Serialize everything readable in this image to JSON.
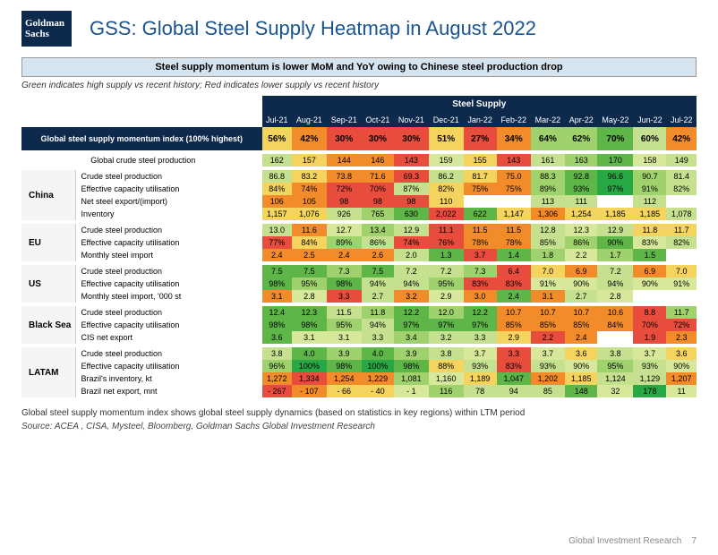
{
  "logo": {
    "line1": "Goldman",
    "line2": "Sachs"
  },
  "title": "GSS: Global Steel Supply Heatmap in August 2022",
  "subtitle": "Steel supply momentum is lower MoM and YoY owing to Chinese steel production drop",
  "legend": "Green indicates high supply vs recent history; Red indicates lower supply vs recent history",
  "table_header_top": "Steel Supply",
  "months": [
    "Jul-21",
    "Aug-21",
    "Sep-21",
    "Oct-21",
    "Nov-21",
    "Dec-21",
    "Jan-22",
    "Feb-22",
    "Mar-22",
    "Apr-22",
    "May-22",
    "Jun-22",
    "Jul-22"
  ],
  "momentum_label": "Global steel supply momentum index (100% highest)",
  "momentum": {
    "values": [
      "56%",
      "42%",
      "30%",
      "30%",
      "30%",
      "51%",
      "27%",
      "34%",
      "64%",
      "62%",
      "70%",
      "60%",
      "42%"
    ],
    "colors": [
      "#f4d35e",
      "#f28c2b",
      "#e84c3d",
      "#e84c3d",
      "#e84c3d",
      "#f4d35e",
      "#e84c3d",
      "#f28c2b",
      "#9fd16c",
      "#9fd16c",
      "#5eb548",
      "#c5e08f",
      "#f28c2b"
    ]
  },
  "global_crude": {
    "label": "Global crude steel production",
    "values": [
      "162",
      "157",
      "144",
      "146",
      "143",
      "159",
      "155",
      "143",
      "161",
      "163",
      "170",
      "158",
      "149"
    ],
    "colors": [
      "#c5e08f",
      "#f4d35e",
      "#f28c2b",
      "#f28c2b",
      "#e84c3d",
      "#d8e89a",
      "#f4d35e",
      "#e84c3d",
      "#c5e08f",
      "#9fd16c",
      "#5eb548",
      "#d8e89a",
      "#c5e08f"
    ]
  },
  "regions": [
    {
      "name": "China",
      "metrics": [
        {
          "label": "Crude steel production",
          "values": [
            "86.8",
            "83.2",
            "73.8",
            "71.6",
            "69.3",
            "86.2",
            "81.7",
            "75.0",
            "88.3",
            "92.8",
            "96.6",
            "90.7",
            "81.4"
          ],
          "colors": [
            "#c5e08f",
            "#f4d35e",
            "#f28c2b",
            "#f28c2b",
            "#e84c3d",
            "#c5e08f",
            "#f4d35e",
            "#f28c2b",
            "#9fd16c",
            "#5eb548",
            "#28a745",
            "#9fd16c",
            "#c5e08f"
          ]
        },
        {
          "label": "Effective capacity utilisation",
          "values": [
            "84%",
            "74%",
            "72%",
            "70%",
            "87%",
            "82%",
            "75%",
            "75%",
            "89%",
            "93%",
            "97%",
            "91%",
            "82%"
          ],
          "colors": [
            "#f4d35e",
            "#f28c2b",
            "#e84c3d",
            "#e84c3d",
            "#c5e08f",
            "#f4d35e",
            "#f28c2b",
            "#f28c2b",
            "#9fd16c",
            "#5eb548",
            "#28a745",
            "#9fd16c",
            "#c5e08f"
          ]
        },
        {
          "label": "Net steel export/(import)",
          "values": [
            "106",
            "105",
            "98",
            "98",
            "98",
            "110",
            "",
            "",
            "113",
            "111",
            "",
            "112",
            ""
          ],
          "colors": [
            "#f28c2b",
            "#f28c2b",
            "#e84c3d",
            "#e84c3d",
            "#e84c3d",
            "#f4d35e",
            "#ffffff",
            "#ffffff",
            "#c5e08f",
            "#c5e08f",
            "#ffffff",
            "#c5e08f",
            "#ffffff"
          ]
        },
        {
          "label": "Inventory",
          "values": [
            "1,157",
            "1,076",
            "926",
            "765",
            "630",
            "2,022",
            "622",
            "1,147",
            "1,306",
            "1,254",
            "1,185",
            "1,185",
            "1,078"
          ],
          "colors": [
            "#f4d35e",
            "#f4d35e",
            "#c5e08f",
            "#9fd16c",
            "#5eb548",
            "#e84c3d",
            "#5eb548",
            "#f4d35e",
            "#f28c2b",
            "#f4d35e",
            "#f4d35e",
            "#f4d35e",
            "#c5e08f"
          ]
        }
      ]
    },
    {
      "name": "EU",
      "metrics": [
        {
          "label": "Crude steel production",
          "values": [
            "13.0",
            "11.6",
            "12.7",
            "13.4",
            "12.9",
            "11.1",
            "11.5",
            "11.5",
            "12.8",
            "12.3",
            "12.9",
            "11.8",
            "11.7"
          ],
          "colors": [
            "#c5e08f",
            "#f28c2b",
            "#d8e89a",
            "#9fd16c",
            "#c5e08f",
            "#e84c3d",
            "#f28c2b",
            "#f28c2b",
            "#c5e08f",
            "#d8e89a",
            "#c5e08f",
            "#f4d35e",
            "#f4d35e"
          ]
        },
        {
          "label": "Effective capacity utilisation",
          "values": [
            "77%",
            "84%",
            "89%",
            "86%",
            "74%",
            "76%",
            "78%",
            "78%",
            "85%",
            "86%",
            "90%",
            "83%",
            "82%"
          ],
          "colors": [
            "#e84c3d",
            "#f4d35e",
            "#9fd16c",
            "#c5e08f",
            "#e84c3d",
            "#e84c3d",
            "#f28c2b",
            "#f28c2b",
            "#c5e08f",
            "#9fd16c",
            "#5eb548",
            "#d8e89a",
            "#c5e08f"
          ]
        },
        {
          "label": "Monthly steel import",
          "values": [
            "2.4",
            "2.5",
            "2.4",
            "2.6",
            "2.0",
            "1.3",
            "3.7",
            "1.4",
            "1.8",
            "2.2",
            "1.7",
            "1.5",
            ""
          ],
          "colors": [
            "#f28c2b",
            "#f28c2b",
            "#f28c2b",
            "#f28c2b",
            "#c5e08f",
            "#5eb548",
            "#e84c3d",
            "#5eb548",
            "#9fd16c",
            "#d8e89a",
            "#9fd16c",
            "#5eb548",
            "#ffffff"
          ]
        }
      ]
    },
    {
      "name": "US",
      "metrics": [
        {
          "label": "Crude steel production",
          "values": [
            "7.5",
            "7.5",
            "7.3",
            "7.5",
            "7.2",
            "7.2",
            "7.3",
            "6.4",
            "7.0",
            "6.9",
            "7.2",
            "6.9",
            "7.0"
          ],
          "colors": [
            "#5eb548",
            "#5eb548",
            "#9fd16c",
            "#5eb548",
            "#c5e08f",
            "#c5e08f",
            "#9fd16c",
            "#e84c3d",
            "#f4d35e",
            "#f28c2b",
            "#c5e08f",
            "#f28c2b",
            "#f4d35e"
          ]
        },
        {
          "label": "Effective capacity utilisation",
          "values": [
            "98%",
            "95%",
            "98%",
            "94%",
            "94%",
            "95%",
            "83%",
            "83%",
            "91%",
            "90%",
            "94%",
            "90%",
            "91%"
          ],
          "colors": [
            "#5eb548",
            "#9fd16c",
            "#5eb548",
            "#c5e08f",
            "#c5e08f",
            "#9fd16c",
            "#e84c3d",
            "#e84c3d",
            "#d8e89a",
            "#d8e89a",
            "#c5e08f",
            "#d8e89a",
            "#d8e89a"
          ]
        },
        {
          "label": "Monthly steel import, '000 st",
          "values": [
            "3.1",
            "2.8",
            "3.3",
            "2.7",
            "3.2",
            "2.9",
            "3.0",
            "2.4",
            "3.1",
            "2.7",
            "2.8",
            "",
            ""
          ],
          "colors": [
            "#f28c2b",
            "#d8e89a",
            "#e84c3d",
            "#c5e08f",
            "#f28c2b",
            "#d8e89a",
            "#f28c2b",
            "#5eb548",
            "#f28c2b",
            "#c5e08f",
            "#d8e89a",
            "#ffffff",
            "#ffffff"
          ]
        }
      ]
    },
    {
      "name": "Black Sea",
      "metrics": [
        {
          "label": "Crude steel production",
          "values": [
            "12.4",
            "12.3",
            "11.5",
            "11.8",
            "12.2",
            "12.0",
            "12.2",
            "10.7",
            "10.7",
            "10.7",
            "10.6",
            "8.8",
            "11.7"
          ],
          "colors": [
            "#5eb548",
            "#5eb548",
            "#c5e08f",
            "#9fd16c",
            "#5eb548",
            "#9fd16c",
            "#5eb548",
            "#f28c2b",
            "#f28c2b",
            "#f28c2b",
            "#f28c2b",
            "#e84c3d",
            "#9fd16c"
          ]
        },
        {
          "label": "Effective capacity utilisation",
          "values": [
            "98%",
            "98%",
            "95%",
            "94%",
            "97%",
            "97%",
            "97%",
            "85%",
            "85%",
            "85%",
            "84%",
            "70%",
            "72%"
          ],
          "colors": [
            "#5eb548",
            "#5eb548",
            "#9fd16c",
            "#c5e08f",
            "#5eb548",
            "#5eb548",
            "#5eb548",
            "#f28c2b",
            "#f28c2b",
            "#f28c2b",
            "#f28c2b",
            "#e84c3d",
            "#e84c3d"
          ]
        },
        {
          "label": "CIS net export",
          "values": [
            "3.6",
            "3.1",
            "3.1",
            "3.3",
            "3.4",
            "3.2",
            "3.3",
            "2.9",
            "2.2",
            "2.4",
            "",
            "1.9",
            "2.3"
          ],
          "colors": [
            "#5eb548",
            "#d8e89a",
            "#d8e89a",
            "#c5e08f",
            "#9fd16c",
            "#c5e08f",
            "#c5e08f",
            "#f4d35e",
            "#e84c3d",
            "#f28c2b",
            "#ffffff",
            "#e84c3d",
            "#f28c2b"
          ]
        }
      ]
    },
    {
      "name": "LATAM",
      "metrics": [
        {
          "label": "Crude steel production",
          "values": [
            "3.8",
            "4.0",
            "3.9",
            "4.0",
            "3.9",
            "3.8",
            "3.7",
            "3.3",
            "3.7",
            "3.6",
            "3.8",
            "3.7",
            "3.6"
          ],
          "colors": [
            "#c5e08f",
            "#5eb548",
            "#9fd16c",
            "#5eb548",
            "#9fd16c",
            "#c5e08f",
            "#d8e89a",
            "#e84c3d",
            "#d8e89a",
            "#f4d35e",
            "#c5e08f",
            "#d8e89a",
            "#f4d35e"
          ]
        },
        {
          "label": "Effective capacity utilisation",
          "values": [
            "96%",
            "100%",
            "98%",
            "100%",
            "98%",
            "88%",
            "93%",
            "83%",
            "93%",
            "90%",
            "95%",
            "93%",
            "90%"
          ],
          "colors": [
            "#9fd16c",
            "#28a745",
            "#5eb548",
            "#28a745",
            "#5eb548",
            "#f4d35e",
            "#c5e08f",
            "#e84c3d",
            "#c5e08f",
            "#d8e89a",
            "#9fd16c",
            "#c5e08f",
            "#d8e89a"
          ]
        },
        {
          "label": "Brazil's inventory, kt",
          "values": [
            "1,272",
            "1,334",
            "1,254",
            "1,229",
            "1,081",
            "1,160",
            "1,189",
            "1,047",
            "1,202",
            "1,185",
            "1,124",
            "1,129",
            "1,207"
          ],
          "colors": [
            "#f28c2b",
            "#e84c3d",
            "#f28c2b",
            "#f28c2b",
            "#9fd16c",
            "#d8e89a",
            "#f4d35e",
            "#5eb548",
            "#f28c2b",
            "#f4d35e",
            "#c5e08f",
            "#c5e08f",
            "#f28c2b"
          ]
        },
        {
          "label": "Brazil net export, mnt",
          "values": [
            "- 267",
            "- 107",
            "- 66",
            "- 40",
            "- 1",
            "116",
            "78",
            "94",
            "85",
            "148",
            "32",
            "178",
            "11"
          ],
          "colors": [
            "#e84c3d",
            "#f28c2b",
            "#f4d35e",
            "#f4d35e",
            "#d8e89a",
            "#9fd16c",
            "#c5e08f",
            "#c5e08f",
            "#c5e08f",
            "#5eb548",
            "#d8e89a",
            "#28a745",
            "#d8e89a"
          ]
        }
      ]
    }
  ],
  "note": "Global steel supply momentum index shows global steel supply dynamics (based on statistics in key regions) within LTM period",
  "source": "Source: ACEA , CISA, Mysteel, Bloomberg, Goldman Sachs Global Investment Research",
  "footer_text": "Global Investment Research",
  "page_num": "7"
}
